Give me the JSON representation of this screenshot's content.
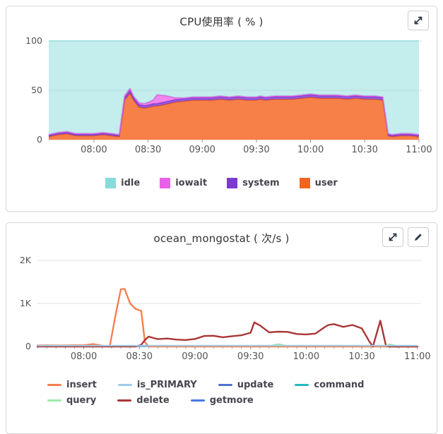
{
  "panels": [
    {
      "title": "CPU使用率 ( % )",
      "buttons": {
        "expand": "expand"
      },
      "legend": [
        {
          "label": "idle",
          "color": "#87dbdb",
          "shape": "square"
        },
        {
          "label": "iowait",
          "color": "#ea5fe8",
          "shape": "square"
        },
        {
          "label": "system",
          "color": "#7c3ad2",
          "shape": "square"
        },
        {
          "label": "user",
          "color": "#f4641e",
          "shape": "square"
        }
      ]
    },
    {
      "title": "ocean_mongostat ( 次/s )",
      "buttons": {
        "expand": "expand",
        "edit": "edit"
      },
      "legend": [
        {
          "label": "insert",
          "color": "#f2814f",
          "shape": "line"
        },
        {
          "label": "is_PRIMARY",
          "color": "#9ccce8",
          "shape": "line"
        },
        {
          "label": "update",
          "color": "#5170cf",
          "shape": "line"
        },
        {
          "label": "command",
          "color": "#26b8c0",
          "shape": "line"
        },
        {
          "label": "query",
          "color": "#9fe8a8",
          "shape": "line"
        },
        {
          "label": "delete",
          "color": "#a93636",
          "shape": "line"
        },
        {
          "label": "getmore",
          "color": "#4a77e0",
          "shape": "line"
        }
      ]
    }
  ],
  "chart_data": [
    {
      "type": "area",
      "stacked": true,
      "title": "CPU使用率 ( % )",
      "ylabel": "%",
      "xlim": [
        "07:35",
        "11:02"
      ],
      "ylim": [
        0,
        100
      ],
      "yticks": [
        {
          "label": "0",
          "value": 0
        },
        {
          "label": "50",
          "value": 50
        },
        {
          "label": "100",
          "value": 100
        }
      ],
      "xticks": [
        "08:00",
        "08:30",
        "09:00",
        "09:30",
        "10:00",
        "10:30",
        "11:00"
      ],
      "grid": true,
      "legend_position": "bottom",
      "x": [
        "07:35",
        "07:40",
        "07:45",
        "07:50",
        "07:55",
        "08:00",
        "08:05",
        "08:10",
        "08:14",
        "08:17",
        "08:20",
        "08:22",
        "08:25",
        "08:28",
        "08:31",
        "08:33",
        "08:35",
        "08:40",
        "08:45",
        "08:50",
        "08:55",
        "09:00",
        "09:05",
        "09:10",
        "09:15",
        "09:20",
        "09:25",
        "09:30",
        "09:32",
        "09:35",
        "09:40",
        "09:45",
        "09:50",
        "09:55",
        "10:00",
        "10:05",
        "10:10",
        "10:12",
        "10:15",
        "10:20",
        "10:25",
        "10:30",
        "10:34",
        "10:36",
        "10:40",
        "10:43",
        "10:45",
        "10:50",
        "10:55",
        "11:00"
      ],
      "series": [
        {
          "name": "user",
          "fill": "#f4641e",
          "fill_opacity": 0.82,
          "line": "#e85c28",
          "values": [
            3,
            5,
            6,
            4,
            4,
            4,
            5,
            4,
            3,
            40,
            47,
            40,
            33,
            32,
            33,
            34,
            34,
            36,
            38,
            39,
            40,
            40,
            40,
            41,
            40,
            41,
            40,
            40,
            41,
            40,
            41,
            41,
            41,
            42,
            43,
            42,
            42,
            42,
            42,
            41,
            42,
            41,
            41,
            41,
            40,
            4,
            3,
            4,
            4,
            3
          ]
        },
        {
          "name": "system",
          "fill": "#7c3ad2",
          "fill_opacity": 0.8,
          "line": "#7b35d2",
          "values": [
            1.5,
            1.5,
            1.5,
            1.5,
            1.5,
            1.5,
            1.5,
            1.5,
            1.5,
            2.5,
            3,
            2.5,
            2.5,
            2.5,
            2.5,
            2.5,
            2.5,
            2.5,
            2.5,
            2.5,
            2.5,
            2.5,
            2.5,
            2.5,
            2.5,
            2.5,
            2.5,
            2.5,
            2.5,
            2.5,
            2.5,
            2.5,
            2.5,
            2.5,
            2.5,
            2.5,
            2.5,
            2.5,
            2.5,
            2.5,
            2.5,
            2.5,
            2.5,
            2.5,
            2.5,
            1.5,
            1.5,
            1.5,
            1.5,
            1.5
          ]
        },
        {
          "name": "iowait",
          "fill": "#ea5fe8",
          "fill_opacity": 0.75,
          "line": "#e55fe0",
          "values": [
            0.8,
            0.8,
            0.8,
            0.8,
            0.8,
            0.8,
            0.8,
            0.8,
            0.8,
            2,
            2,
            1.5,
            2,
            2,
            3,
            4,
            9,
            6,
            2,
            0.8,
            0.8,
            0.8,
            0.8,
            0.8,
            0.8,
            0.8,
            0.8,
            0.8,
            0.8,
            0.8,
            0.8,
            0.8,
            0.8,
            0.8,
            0.8,
            0.8,
            0.8,
            0.8,
            0.8,
            0.8,
            0.8,
            0.8,
            0.8,
            0.8,
            0.8,
            0.8,
            0.8,
            0.8,
            0.8,
            0.8
          ]
        },
        {
          "name": "idle",
          "fill": "#8adcdc",
          "fill_opacity": 0.5,
          "line": "#9fe0e0",
          "values": [
            94.7,
            92.7,
            91.7,
            93.7,
            93.7,
            93.7,
            92.7,
            93.7,
            94.7,
            55.5,
            48,
            56,
            62.5,
            63.5,
            61.5,
            59.5,
            54.5,
            55.5,
            57.5,
            57.7,
            56.7,
            56.7,
            56.7,
            55.7,
            56.7,
            55.7,
            56.7,
            56.7,
            55.7,
            56.7,
            55.7,
            55.7,
            55.7,
            54.7,
            53.7,
            54.7,
            54.7,
            54.7,
            54.7,
            55.7,
            54.7,
            55.7,
            55.7,
            55.7,
            56.7,
            93.7,
            94.7,
            93.7,
            93.7,
            94.7
          ]
        }
      ]
    },
    {
      "type": "line",
      "title": "ocean_mongostat ( 次/s )",
      "ylabel": "次/s",
      "xlim": [
        "07:35",
        "11:02"
      ],
      "ylim": [
        0,
        2000
      ],
      "yticks": [
        {
          "label": "0",
          "value": 0
        },
        {
          "label": "1K",
          "value": 1000
        },
        {
          "label": "2K",
          "value": 2000
        }
      ],
      "xticks": [
        "08:00",
        "08:30",
        "09:00",
        "09:30",
        "10:00",
        "10:30",
        "11:00"
      ],
      "minor_tick_minutes": 5,
      "grid": true,
      "legend_position": "bottom",
      "draw_order": [
        "query",
        "update",
        "command",
        "getmore",
        "insert",
        "delete",
        "is_PRIMARY"
      ],
      "x": [
        "07:35",
        "07:40",
        "07:45",
        "07:50",
        "07:55",
        "08:00",
        "08:05",
        "08:10",
        "08:14",
        "08:17",
        "08:20",
        "08:22",
        "08:25",
        "08:28",
        "08:31",
        "08:33",
        "08:35",
        "08:40",
        "08:45",
        "08:50",
        "08:55",
        "09:00",
        "09:05",
        "09:10",
        "09:15",
        "09:20",
        "09:25",
        "09:30",
        "09:32",
        "09:35",
        "09:40",
        "09:45",
        "09:50",
        "09:55",
        "10:00",
        "10:05",
        "10:10",
        "10:12",
        "10:15",
        "10:20",
        "10:25",
        "10:30",
        "10:34",
        "10:36",
        "10:40",
        "10:43",
        "10:45",
        "10:50",
        "10:55",
        "11:00"
      ],
      "series": [
        {
          "name": "insert",
          "line": "#f2814f",
          "width": 2.4,
          "values": [
            25,
            28,
            25,
            27,
            30,
            30,
            55,
            20,
            0,
            700,
            1330,
            1340,
            1000,
            870,
            830,
            100,
            0,
            0,
            0,
            0,
            0,
            0,
            0,
            0,
            0,
            0,
            0,
            0,
            0,
            0,
            0,
            0,
            0,
            0,
            0,
            0,
            0,
            0,
            0,
            0,
            0,
            0,
            0,
            0,
            0,
            0,
            0,
            0,
            0,
            0
          ]
        },
        {
          "name": "is_PRIMARY",
          "line": "#9ccce8",
          "width": 2,
          "constant": 20
        },
        {
          "name": "update",
          "line": "#5170cf",
          "width": 1.6,
          "constant": 6
        },
        {
          "name": "command",
          "line": "#26b8c0",
          "width": 1.6,
          "constant": 6
        },
        {
          "name": "query",
          "line": "#9fe8a8",
          "width": 2,
          "values": [
            3,
            3,
            3,
            3,
            3,
            3,
            3,
            3,
            3,
            3,
            3,
            3,
            3,
            3,
            3,
            3,
            3,
            3,
            3,
            3,
            3,
            3,
            3,
            3,
            3,
            3,
            3,
            3,
            3,
            3,
            10,
            55,
            10,
            3,
            3,
            3,
            3,
            3,
            3,
            3,
            3,
            3,
            3,
            3,
            5,
            15,
            50,
            8,
            3,
            3
          ]
        },
        {
          "name": "delete",
          "line": "#a93636",
          "width": 2.4,
          "values": [
            0,
            0,
            0,
            0,
            0,
            0,
            0,
            0,
            0,
            0,
            0,
            0,
            0,
            0,
            40,
            150,
            230,
            170,
            185,
            160,
            150,
            175,
            245,
            250,
            215,
            240,
            260,
            320,
            560,
            490,
            330,
            345,
            340,
            290,
            280,
            300,
            450,
            500,
            520,
            455,
            500,
            420,
            120,
            0,
            600,
            20,
            0,
            0,
            0,
            0
          ]
        },
        {
          "name": "getmore",
          "line": "#4a77e0",
          "width": 1.6,
          "constant": 6
        }
      ]
    }
  ]
}
